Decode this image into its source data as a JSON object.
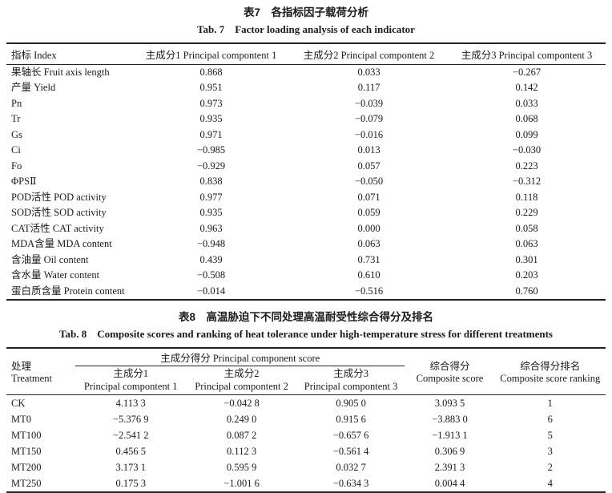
{
  "page": {
    "background": "#ffffff",
    "text_color": "#1b1b1b",
    "rule_color": "#232323"
  },
  "table7": {
    "title_zh": "表7　各指标因子载荷分析",
    "title_en": "Tab. 7　Factor loading analysis of each indicator",
    "columns": {
      "index": "指标 Index",
      "pc1": "主成分1 Principal compontent 1",
      "pc2": "主成分2 Principal compontent 2",
      "pc3": "主成分3 Principal compontent 3"
    },
    "rows": [
      {
        "label": "果轴长 Fruit axis length",
        "pc1": "0.868",
        "pc2": "0.033",
        "pc3": "−0.267"
      },
      {
        "label": "产量 Yield",
        "pc1": "0.951",
        "pc2": "0.117",
        "pc3": "0.142"
      },
      {
        "label": "Pn",
        "pc1": "0.973",
        "pc2": "−0.039",
        "pc3": "0.033"
      },
      {
        "label": "Tr",
        "pc1": "0.935",
        "pc2": "−0.079",
        "pc3": "0.068"
      },
      {
        "label": "Gs",
        "pc1": "0.971",
        "pc2": "−0.016",
        "pc3": "0.099"
      },
      {
        "label": "Ci",
        "pc1": "−0.985",
        "pc2": "0.013",
        "pc3": "−0.030"
      },
      {
        "label": "Fo",
        "pc1": "−0.929",
        "pc2": "0.057",
        "pc3": "0.223"
      },
      {
        "label": "ΦPSⅡ",
        "pc1": "0.838",
        "pc2": "−0.050",
        "pc3": "−0.312"
      },
      {
        "label": "POD活性 POD activity",
        "pc1": "0.977",
        "pc2": "0.071",
        "pc3": "0.118"
      },
      {
        "label": "SOD活性 SOD activity",
        "pc1": "0.935",
        "pc2": "0.059",
        "pc3": "0.229"
      },
      {
        "label": "CAT活性 CAT activity",
        "pc1": "0.963",
        "pc2": "0.000",
        "pc3": "0.058"
      },
      {
        "label": "MDA含量 MDA content",
        "pc1": "−0.948",
        "pc2": "0.063",
        "pc3": "0.063"
      },
      {
        "label": "含油量 Oil content",
        "pc1": "0.439",
        "pc2": "0.731",
        "pc3": "0.301"
      },
      {
        "label": "含水量 Water content",
        "pc1": "−0.508",
        "pc2": "0.610",
        "pc3": "0.203"
      },
      {
        "label": "蛋白质含量 Protein content",
        "pc1": "−0.014",
        "pc2": "−0.516",
        "pc3": "0.760"
      }
    ]
  },
  "table8": {
    "title_zh": "表8　高温胁迫下不同处理高温耐受性综合得分及排名",
    "title_en": "Tab. 8　Composite scores and ranking of heat tolerance under high-temperature stress for different treatments",
    "header": {
      "treatment_zh": "处理",
      "treatment_en": "Treatment",
      "group": "主成分得分 Principal component score",
      "pc1_zh": "主成分1",
      "pc1_en": "Principal compontent 1",
      "pc2_zh": "主成分2",
      "pc2_en": "Principal compontent 2",
      "pc3_zh": "主成分3",
      "pc3_en": "Principal compontent 3",
      "composite_zh": "综合得分",
      "composite_en": "Composite score",
      "ranking_zh": "综合得分排名",
      "ranking_en": "Composite score ranking"
    },
    "rows": [
      {
        "treatment": "CK",
        "pc1": "4.113 3",
        "pc2": "−0.042 8",
        "pc3": "0.905 0",
        "score": "3.093 5",
        "rank": "1"
      },
      {
        "treatment": "MT0",
        "pc1": "−5.376 9",
        "pc2": "0.249 0",
        "pc3": "0.915 6",
        "score": "−3.883 0",
        "rank": "6"
      },
      {
        "treatment": "MT100",
        "pc1": "−2.541 2",
        "pc2": "0.087 2",
        "pc3": "−0.657 6",
        "score": "−1.913 1",
        "rank": "5"
      },
      {
        "treatment": "MT150",
        "pc1": "0.456 5",
        "pc2": "0.112 3",
        "pc3": "−0.561 4",
        "score": "0.306 9",
        "rank": "3"
      },
      {
        "treatment": "MT200",
        "pc1": "3.173 1",
        "pc2": "0.595 9",
        "pc3": "0.032 7",
        "score": "2.391 3",
        "rank": "2"
      },
      {
        "treatment": "MT250",
        "pc1": "0.175 3",
        "pc2": "−1.001 6",
        "pc3": "−0.634 3",
        "score": "0.004 4",
        "rank": "4"
      }
    ]
  }
}
